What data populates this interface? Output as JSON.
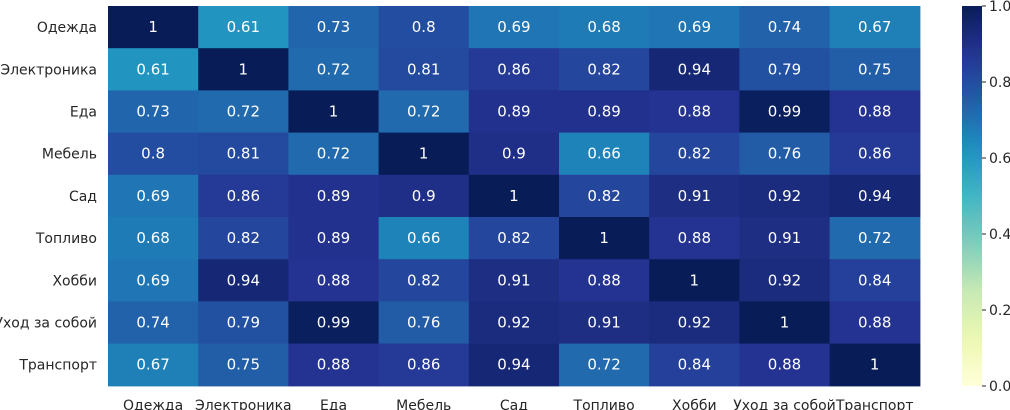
{
  "chart_data": {
    "type": "heatmap",
    "title": "",
    "xlabel": "",
    "ylabel": "",
    "rows": [
      "Одежда",
      "Электроника",
      "Еда",
      "Мебель",
      "Сад",
      "Топливо",
      "Хобби",
      "Уход за собой",
      "Транспорт"
    ],
    "columns": [
      "Одежда",
      "Электроника",
      "Еда",
      "Мебель",
      "Сад",
      "Топливо",
      "Хобби",
      "Уход за собой",
      "Транспорт"
    ],
    "values": [
      [
        1,
        0.61,
        0.73,
        0.8,
        0.69,
        0.68,
        0.69,
        0.74,
        0.67
      ],
      [
        0.61,
        1,
        0.72,
        0.81,
        0.86,
        0.82,
        0.94,
        0.79,
        0.75
      ],
      [
        0.73,
        0.72,
        1,
        0.72,
        0.89,
        0.89,
        0.88,
        0.99,
        0.88
      ],
      [
        0.8,
        0.81,
        0.72,
        1,
        0.9,
        0.66,
        0.82,
        0.76,
        0.86
      ],
      [
        0.69,
        0.86,
        0.89,
        0.9,
        1,
        0.82,
        0.91,
        0.92,
        0.94
      ],
      [
        0.68,
        0.82,
        0.89,
        0.66,
        0.82,
        1,
        0.88,
        0.91,
        0.72
      ],
      [
        0.69,
        0.94,
        0.88,
        0.82,
        0.91,
        0.88,
        1,
        0.92,
        0.84
      ],
      [
        0.74,
        0.79,
        0.99,
        0.76,
        0.92,
        0.91,
        0.92,
        1,
        0.88
      ],
      [
        0.67,
        0.75,
        0.88,
        0.86,
        0.94,
        0.72,
        0.84,
        0.88,
        1
      ]
    ],
    "value_range": [
      0.0,
      1.0
    ],
    "colormap": "YlGnBu",
    "colorbar": {
      "ticks": [
        "0.0",
        "0.2",
        "0.4",
        "0.6",
        "0.8",
        "1.0"
      ],
      "placement": "right"
    },
    "grid": false
  }
}
